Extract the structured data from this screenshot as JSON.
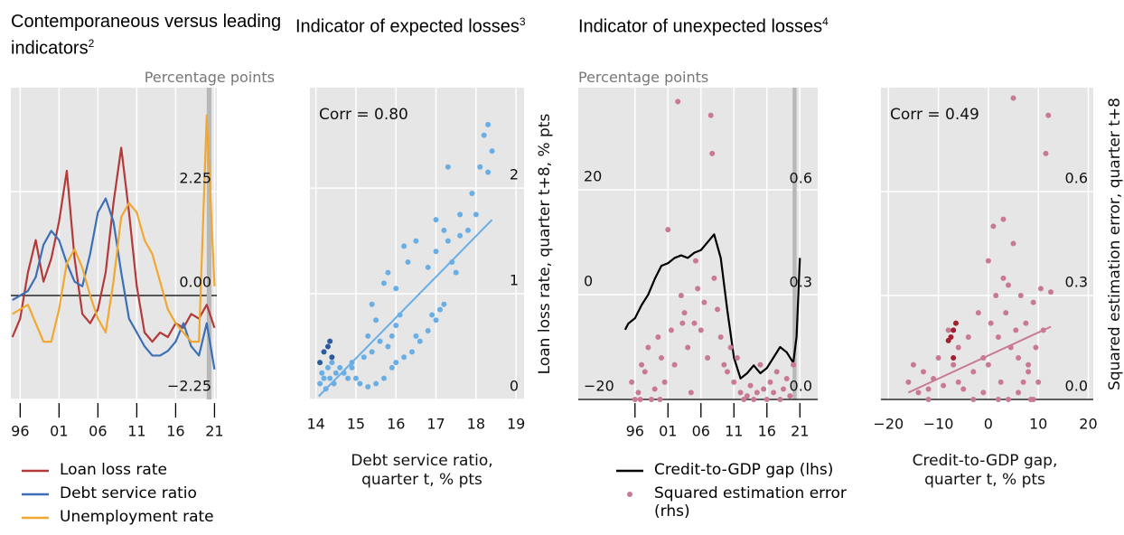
{
  "chart_data": [
    {
      "type": "line",
      "title": "Contemporaneous versus leading indicators",
      "title_footnote": "2",
      "subtitle": "Percentage points",
      "x": [
        1995,
        1996,
        1997,
        1998,
        1999,
        2000,
        2001,
        2002,
        2003,
        2004,
        2005,
        2006,
        2007,
        2008,
        2009,
        2010,
        2011,
        2012,
        2013,
        2014,
        2015,
        2016,
        2017,
        2018,
        2019,
        2020,
        2021
      ],
      "series": [
        {
          "name": "Loan loss rate",
          "color": "#b33a3a",
          "values": [
            -0.9,
            -0.5,
            0.5,
            1.2,
            0.3,
            0.8,
            1.6,
            2.7,
            0.8,
            -0.4,
            -0.6,
            -0.3,
            0.5,
            2.0,
            3.2,
            1.8,
            0.2,
            -0.8,
            -1.0,
            -0.8,
            -0.9,
            -0.6,
            -0.7,
            -0.4,
            -0.5,
            -0.2,
            -0.7
          ]
        },
        {
          "name": "Debt service ratio",
          "color": "#3d6fb6",
          "values": [
            -0.1,
            0.0,
            0.1,
            0.4,
            1.1,
            1.4,
            1.2,
            0.7,
            0.3,
            0.2,
            0.9,
            1.8,
            2.1,
            1.6,
            0.5,
            -0.5,
            -0.8,
            -1.1,
            -1.3,
            -1.3,
            -1.2,
            -1.0,
            -0.6,
            -1.1,
            -1.3,
            -0.6,
            -1.6
          ]
        },
        {
          "name": "Unemployment rate",
          "color": "#f0a830",
          "values": [
            -0.4,
            -0.3,
            -0.2,
            -0.6,
            -1.0,
            -1.0,
            -0.3,
            0.7,
            1.0,
            0.6,
            0.0,
            -0.5,
            -0.8,
            0.3,
            1.7,
            2.0,
            1.8,
            1.2,
            0.9,
            0.3,
            -0.3,
            -0.6,
            -0.8,
            -1.0,
            -1.0,
            3.9,
            0.2
          ]
        }
      ],
      "xlim": [
        1994.8,
        2021.3
      ],
      "xticks": [
        {
          "value": 1996,
          "label": "96"
        },
        {
          "value": 2001,
          "label": "01"
        },
        {
          "value": 2006,
          "label": "06"
        },
        {
          "value": 2011,
          "label": "11"
        },
        {
          "value": 2016,
          "label": "16"
        },
        {
          "value": 2021,
          "label": "21"
        }
      ],
      "ylim": [
        -2.25,
        4.5
      ],
      "yticks": [
        {
          "value": -2.25,
          "label": "−2.25"
        },
        {
          "value": 0,
          "label": "0.00"
        },
        2.25
      ],
      "shaded_x": [
        2020,
        2020.6
      ],
      "grid": true
    },
    {
      "type": "scatter",
      "title": "Indicator of expected losses",
      "title_footnote": "3",
      "annotation": "Corr = 0.80",
      "x_label": "Debt service ratio, quarter t, % pts",
      "y_label": "Loan loss rate, quarter t+8, % pts",
      "series": [
        {
          "color": "#6aaee6",
          "x": [
            14.1,
            14.15,
            14.2,
            14.3,
            14.35,
            14.4,
            14.5,
            14.6,
            14.7,
            14.8,
            14.9,
            14.25,
            14.45,
            15.0,
            15.1,
            15.3,
            15.5,
            15.7,
            15.9,
            16.0,
            16.2,
            16.4,
            16.6,
            16.8,
            17.0,
            17.1,
            17.2,
            15.8,
            15.6,
            15.4,
            15.2,
            15.9,
            16.0,
            15.5,
            15.3,
            16.1,
            16.0,
            15.7,
            15.8,
            16.3,
            16.5,
            16.2,
            16.8,
            17.0,
            17.2,
            17.4,
            17.5,
            17.3,
            17.0,
            17.6,
            17.8,
            18.0,
            17.9,
            17.3,
            18.1,
            18.2,
            18.3,
            18.4,
            18.3,
            17.6,
            16.5,
            16.9,
            15.4,
            14.9
          ],
          "values": [
            0.15,
            0.25,
            0.2,
            0.3,
            0.2,
            0.35,
            0.25,
            0.3,
            0.25,
            0.2,
            0.3,
            0.1,
            0.15,
            0.2,
            0.15,
            0.12,
            0.15,
            0.2,
            0.3,
            0.35,
            0.4,
            0.45,
            0.55,
            0.65,
            0.75,
            0.85,
            0.9,
            0.5,
            0.55,
            0.45,
            0.4,
            0.6,
            0.7,
            0.75,
            0.6,
            0.8,
            1.05,
            1.1,
            1.2,
            1.3,
            1.5,
            1.45,
            1.25,
            1.4,
            1.6,
            1.3,
            1.2,
            1.5,
            1.7,
            1.75,
            1.6,
            1.75,
            1.95,
            2.2,
            2.2,
            2.5,
            2.6,
            2.35,
            2.15,
            1.55,
            0.6,
            0.8,
            0.9,
            0.35
          ]
        },
        {
          "color": "#2a5c9a",
          "x": [
            14.1,
            14.2,
            14.3,
            14.35,
            14.4
          ],
          "values": [
            0.35,
            0.45,
            0.5,
            0.55,
            0.4
          ]
        }
      ],
      "trend": {
        "color": "#6aaee6",
        "x": [
          14.07,
          18.4
        ],
        "values": [
          0.03,
          1.7
        ]
      },
      "xlim": [
        13.85,
        19.2
      ],
      "xticks": [
        14,
        15,
        16,
        17,
        18,
        19
      ],
      "ylim": [
        0,
        2.95
      ],
      "yticks": [
        0,
        1,
        2
      ],
      "grid": true
    },
    {
      "type": "line",
      "title": "Indicator of unexpected losses",
      "title_footnote": "4",
      "subtitle": "Percentage points",
      "series": [
        {
          "name": "Credit-to-GDP gap (lhs)",
          "type": "line",
          "color": "#000000",
          "x": [
            1994.5,
            1995,
            1996,
            1997,
            1998,
            1999,
            2000,
            2001,
            2002,
            2003,
            2004,
            2005,
            2006,
            2007,
            2008,
            2009,
            2010,
            2011,
            2012,
            2013,
            2014,
            2015,
            2016,
            2017,
            2018,
            2019,
            2020,
            2020.5,
            2021
          ],
          "values": [
            -6.7,
            -5.5,
            -4.5,
            -2,
            0,
            3,
            5.5,
            6,
            7,
            7.5,
            7,
            8,
            8.5,
            10,
            11.5,
            7,
            -3,
            -12,
            -16,
            -15,
            -13.5,
            -15,
            -14,
            -12,
            -10,
            -11,
            -13,
            -8,
            7
          ]
        },
        {
          "name": "Squared estimation error (rhs)",
          "type": "scatter",
          "axis": "y2",
          "color": "#c97a92",
          "x": [
            1995.5,
            1996,
            1996.5,
            1997,
            1997.5,
            1998,
            1998.5,
            1999,
            1999.5,
            2000,
            2000.5,
            2001,
            2001.5,
            2002,
            2002.5,
            2003,
            2003.5,
            2004,
            2004.5,
            2005,
            2005.5,
            2006,
            2006.5,
            2007,
            2007.5,
            2007.7,
            2008,
            2008.5,
            2009,
            2009.5,
            2010,
            2010.5,
            2011,
            2011.5,
            2012,
            2012.5,
            2013,
            2013.5,
            2014,
            2014.5,
            2015,
            2015.5,
            2016,
            2016.5,
            2017,
            2017.5,
            2018,
            2018.5,
            2019,
            2019.5,
            2020,
            2003.2,
            2005.2,
            1996.8,
            1999.8
          ],
          "values": [
            0.05,
            0.0,
            0.02,
            0.1,
            0.08,
            0.15,
            0.0,
            0.03,
            0.18,
            0.12,
            0.05,
            0.49,
            0.2,
            0.1,
            0.86,
            0.3,
            0.25,
            0.15,
            0.02,
            0.22,
            0.32,
            0.2,
            0.28,
            0.12,
            0.82,
            0.71,
            0.35,
            0.26,
            0.18,
            0.1,
            0.08,
            0.15,
            0.05,
            0.12,
            0.02,
            0.0,
            0.01,
            0.04,
            0.0,
            0.02,
            0.1,
            0.03,
            0.0,
            0.05,
            0.02,
            0.08,
            0.0,
            0.03,
            0.06,
            0.01,
            0.1,
            0.22,
            0.4,
            0.0,
            0.0
          ]
        }
      ],
      "xlim": [
        1987.4,
        2023.7
      ],
      "xticks": [
        {
          "value": 1996,
          "label": "96"
        },
        {
          "value": 2001,
          "label": "01"
        },
        {
          "value": 2006,
          "label": "06"
        },
        {
          "value": 2011,
          "label": "11"
        },
        {
          "value": 2016,
          "label": "16"
        },
        {
          "value": 2021,
          "label": "21"
        }
      ],
      "ylim": [
        -20,
        39.5
      ],
      "yticks": [
        {
          "value": -20,
          "label": "−20"
        },
        0,
        20
      ],
      "y2lim": [
        0,
        0.9
      ],
      "y2ticks": [
        {
          "value": 0,
          "label": "0.0"
        },
        0.3,
        0.6
      ],
      "shaded_x": [
        2019.9,
        2020.5
      ],
      "grid": true
    },
    {
      "type": "scatter",
      "annotation": "Corr = 0.49",
      "x_label": "Credit-to-GDP gap, quarter t, % pts",
      "y_label": "Squared estimation error, quarter t+8",
      "series": [
        {
          "color": "#c97a92",
          "x": [
            -16,
            -15,
            -14,
            -13,
            -12,
            -11,
            -10,
            -9,
            -8,
            -7,
            -6,
            -5,
            -4,
            -3,
            -2,
            -1,
            0,
            0.5,
            1,
            1.5,
            2,
            2.5,
            3,
            3.5,
            4,
            4.5,
            5,
            5.5,
            6,
            6.5,
            7,
            7.5,
            8,
            8.5,
            9,
            9.5,
            10,
            10.5,
            11,
            11.5,
            12,
            12.5,
            5,
            -1,
            -3,
            -6,
            0,
            2,
            6,
            9,
            -12,
            3,
            4,
            8
          ],
          "values": [
            0.05,
            0.1,
            0.02,
            0.08,
            0.03,
            0.06,
            0.12,
            0.04,
            0.2,
            0.1,
            0.15,
            0.03,
            0.18,
            0.08,
            0.25,
            0.12,
            0.4,
            0.22,
            0.5,
            0.3,
            0.18,
            0.05,
            0.35,
            0.25,
            0.0,
            0.15,
            0.45,
            0.2,
            0.12,
            0.3,
            0.05,
            0.22,
            0.1,
            0.0,
            0.28,
            0.15,
            0.05,
            0.32,
            0.2,
            0.71,
            0.82,
            0.31,
            0.87,
            0.02,
            0.0,
            0.05,
            0.1,
            0.0,
            0.02,
            0.0,
            0.0,
            0.52,
            0.33,
            0.08
          ]
        },
        {
          "color": "#a31f2f",
          "x": [
            -7,
            -7.5,
            -8,
            -6.5,
            -7
          ],
          "values": [
            0.2,
            0.18,
            0.17,
            0.22,
            0.12
          ]
        }
      ],
      "trend": {
        "color": "#c97a92",
        "x": [
          -16,
          12.5
        ],
        "values": [
          0.02,
          0.21
        ]
      },
      "xlim": [
        -21.5,
        21
      ],
      "xticks": [
        {
          "value": -20,
          "label": "−20"
        },
        {
          "value": -10,
          "label": "−10"
        },
        0,
        10,
        20
      ],
      "ylim": [
        0,
        0.9
      ],
      "yticks": [
        {
          "value": 0,
          "label": "0.0"
        },
        0.3,
        0.6
      ],
      "grid": true
    }
  ]
}
